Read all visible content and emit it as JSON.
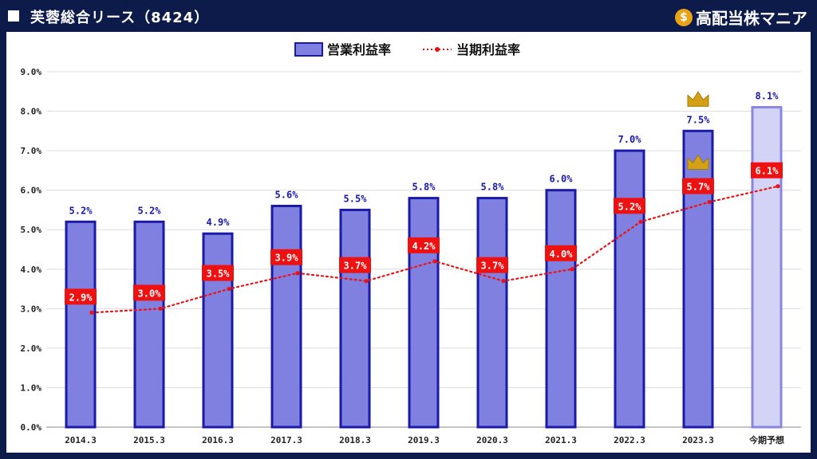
{
  "header": {
    "title": "芙蓉総合リース（8424）",
    "brand": "高配当株マニア",
    "brand_icon": "money-bag-icon"
  },
  "colors": {
    "background": "#0d1b4b",
    "bar_fill": "#8080e0",
    "bar_stroke": "#1a1aa8",
    "forecast_fill": "#d3d3f5",
    "forecast_stroke": "#8a85e0",
    "net_line": "#ee1111",
    "crown": "#d4a017"
  },
  "chart_data": {
    "type": "bar",
    "categories": [
      "2014.3",
      "2015.3",
      "2016.3",
      "2017.3",
      "2018.3",
      "2019.3",
      "2020.3",
      "2021.3",
      "2022.3",
      "2023.3",
      "今期予想"
    ],
    "series": [
      {
        "name": "営業利益率",
        "type": "bar",
        "values": [
          5.2,
          5.2,
          4.9,
          5.6,
          5.5,
          5.8,
          5.8,
          6.0,
          7.0,
          7.5,
          8.1
        ],
        "labels": [
          "5.2%",
          "5.2%",
          "4.9%",
          "5.6%",
          "5.5%",
          "5.8%",
          "5.8%",
          "6.0%",
          "7.0%",
          "7.5%",
          "8.1%"
        ]
      },
      {
        "name": "当期利益率",
        "type": "line",
        "values": [
          2.9,
          3.0,
          3.5,
          3.9,
          3.7,
          4.2,
          3.7,
          4.0,
          5.2,
          5.7,
          6.1
        ],
        "labels": [
          "2.9%",
          "3.0%",
          "3.5%",
          "3.9%",
          "3.7%",
          "4.2%",
          "3.7%",
          "4.0%",
          "5.2%",
          "5.7%",
          "6.1%"
        ]
      }
    ],
    "forecast_index": 10,
    "crown_index": 9,
    "ylim": [
      0,
      9
    ],
    "yticks": [
      "0.0%",
      "1.0%",
      "2.0%",
      "3.0%",
      "4.0%",
      "5.0%",
      "6.0%",
      "7.0%",
      "8.0%",
      "9.0%"
    ],
    "grid": true,
    "legend_position": "top-center"
  }
}
